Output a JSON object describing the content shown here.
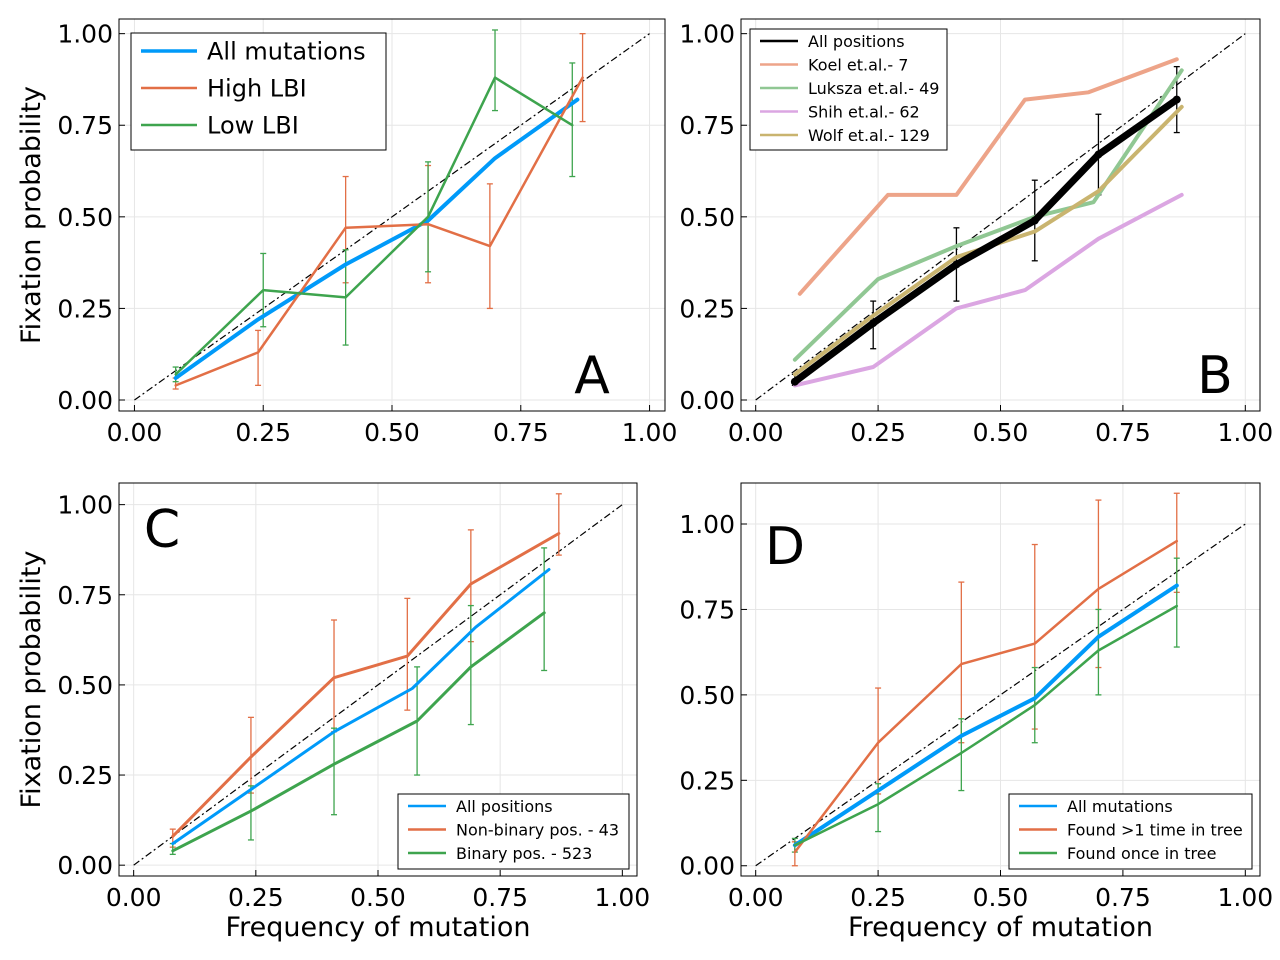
{
  "colors": {
    "blue": "#009af9",
    "orange": "#e26f46",
    "green": "#3ea44e",
    "salmon": "#eda489",
    "lightgreen": "#90c793",
    "purple": "#dba6e2",
    "khaki": "#c9b46f",
    "black": "#000000",
    "grid": "#e6e6e6"
  },
  "chart_data": [
    {
      "id": "A",
      "type": "line",
      "panel_label": "A",
      "xlabel": "",
      "ylabel": "Fixation probability",
      "xlim": [
        -0.03,
        1.03
      ],
      "ylim": [
        -0.03,
        1.04
      ],
      "xticks": [
        "0.00",
        "0.25",
        "0.50",
        "0.75",
        "1.00"
      ],
      "yticks": [
        "0.00",
        "0.25",
        "0.50",
        "0.75",
        "1.00"
      ],
      "grid": true,
      "legend_position": "top-left",
      "reference_line": "diagonal dash-dot",
      "series": [
        {
          "name": "All mutations",
          "color": "#009af9",
          "width": 4,
          "x": [
            0.08,
            0.24,
            0.41,
            0.57,
            0.7,
            0.86
          ],
          "y": [
            0.06,
            0.22,
            0.37,
            0.49,
            0.66,
            0.82
          ]
        },
        {
          "name": "High LBI",
          "color": "#e26f46",
          "width": 2.5,
          "x": [
            0.08,
            0.24,
            0.41,
            0.57,
            0.69,
            0.87
          ],
          "y": [
            0.04,
            0.13,
            0.47,
            0.48,
            0.42,
            0.88
          ],
          "err_low": [
            0.03,
            0.04,
            0.32,
            0.32,
            0.25,
            0.76
          ],
          "err_high": [
            0.06,
            0.19,
            0.61,
            0.64,
            0.59,
            1.0
          ]
        },
        {
          "name": "Low LBI",
          "color": "#3ea44e",
          "width": 2.5,
          "x": [
            0.08,
            0.25,
            0.41,
            0.57,
            0.7,
            0.85
          ],
          "y": [
            0.07,
            0.3,
            0.28,
            0.5,
            0.88,
            0.75
          ],
          "err_low": [
            0.05,
            0.2,
            0.15,
            0.35,
            0.79,
            0.61
          ],
          "err_high": [
            0.09,
            0.4,
            0.41,
            0.65,
            1.01,
            0.92
          ]
        }
      ]
    },
    {
      "id": "B",
      "type": "line",
      "panel_label": "B",
      "xlabel": "",
      "ylabel": "",
      "xlim": [
        -0.03,
        1.03
      ],
      "ylim": [
        -0.03,
        1.04
      ],
      "xticks": [
        "0.00",
        "0.25",
        "0.50",
        "0.75",
        "1.00"
      ],
      "yticks": [
        "0.00",
        "0.25",
        "0.50",
        "0.75",
        "1.00"
      ],
      "grid": true,
      "legend_position": "top-left",
      "reference_line": "diagonal dash-dot",
      "series": [
        {
          "name": "All positions",
          "color": "#000000",
          "width": 7,
          "x": [
            0.08,
            0.24,
            0.41,
            0.57,
            0.7,
            0.86
          ],
          "y": [
            0.05,
            0.21,
            0.37,
            0.49,
            0.67,
            0.82
          ],
          "err_low": [
            0.04,
            0.14,
            0.27,
            0.38,
            0.56,
            0.73
          ],
          "err_high": [
            0.07,
            0.27,
            0.47,
            0.6,
            0.78,
            0.91
          ]
        },
        {
          "name": "Koel et.al.- 7",
          "color": "#eda489",
          "width": 4,
          "x": [
            0.09,
            0.27,
            0.41,
            0.55,
            0.68,
            0.86
          ],
          "y": [
            0.29,
            0.56,
            0.56,
            0.82,
            0.84,
            0.93
          ]
        },
        {
          "name": "Luksza et.al.- 49",
          "color": "#90c793",
          "width": 4,
          "x": [
            0.08,
            0.25,
            0.41,
            0.57,
            0.69,
            0.87
          ],
          "y": [
            0.11,
            0.33,
            0.42,
            0.5,
            0.54,
            0.9
          ]
        },
        {
          "name": "Shih et.al.- 62",
          "color": "#dba6e2",
          "width": 4,
          "x": [
            0.08,
            0.24,
            0.41,
            0.55,
            0.7,
            0.87
          ],
          "y": [
            0.04,
            0.09,
            0.25,
            0.3,
            0.44,
            0.56
          ]
        },
        {
          "name": "Wolf et.al.- 129",
          "color": "#c9b46f",
          "width": 4,
          "x": [
            0.08,
            0.24,
            0.41,
            0.57,
            0.7,
            0.87
          ],
          "y": [
            0.07,
            0.23,
            0.39,
            0.46,
            0.57,
            0.8
          ]
        }
      ]
    },
    {
      "id": "C",
      "type": "line",
      "panel_label": "C",
      "xlabel": "Frequency of mutation",
      "ylabel": "Fixation probability",
      "xlim": [
        -0.03,
        1.03
      ],
      "ylim": [
        -0.03,
        1.06
      ],
      "xticks": [
        "0.00",
        "0.25",
        "0.50",
        "0.75",
        "1.00"
      ],
      "yticks": [
        "0.00",
        "0.25",
        "0.50",
        "0.75",
        "1.00"
      ],
      "grid": true,
      "legend_position": "bottom-right",
      "reference_line": "diagonal dash-dot",
      "series": [
        {
          "name": "All positions",
          "color": "#009af9",
          "width": 3,
          "x": [
            0.08,
            0.24,
            0.41,
            0.57,
            0.7,
            0.85
          ],
          "y": [
            0.06,
            0.21,
            0.37,
            0.49,
            0.66,
            0.82
          ]
        },
        {
          "name": "Non-binary pos. - 43",
          "color": "#e26f46",
          "width": 3,
          "x": [
            0.08,
            0.24,
            0.41,
            0.56,
            0.69,
            0.87
          ],
          "y": [
            0.08,
            0.3,
            0.52,
            0.58,
            0.78,
            0.92
          ],
          "err_low": [
            0.05,
            0.2,
            0.37,
            0.43,
            0.62,
            0.86
          ],
          "err_high": [
            0.1,
            0.41,
            0.68,
            0.74,
            0.93,
            1.03
          ]
        },
        {
          "name": "Binary pos. - 523",
          "color": "#3ea44e",
          "width": 3,
          "x": [
            0.08,
            0.24,
            0.41,
            0.58,
            0.69,
            0.84
          ],
          "y": [
            0.04,
            0.15,
            0.28,
            0.4,
            0.55,
            0.7
          ],
          "err_low": [
            0.03,
            0.07,
            0.14,
            0.25,
            0.39,
            0.54
          ],
          "err_high": [
            0.06,
            0.22,
            0.38,
            0.55,
            0.72,
            0.88
          ]
        }
      ]
    },
    {
      "id": "D",
      "type": "line",
      "panel_label": "D",
      "xlabel": "Frequency of mutation",
      "ylabel": "",
      "xlim": [
        -0.03,
        1.03
      ],
      "ylim": [
        -0.03,
        1.12
      ],
      "xticks": [
        "0.00",
        "0.25",
        "0.50",
        "0.75",
        "1.00"
      ],
      "yticks": [
        "0.00",
        "0.25",
        "0.50",
        "0.75",
        "1.00"
      ],
      "grid": true,
      "legend_position": "bottom-right",
      "reference_line": "diagonal dash-dot",
      "series": [
        {
          "name": "All mutations",
          "color": "#009af9",
          "width": 4,
          "x": [
            0.08,
            0.25,
            0.42,
            0.57,
            0.7,
            0.86
          ],
          "y": [
            0.06,
            0.22,
            0.38,
            0.49,
            0.67,
            0.82
          ]
        },
        {
          "name": "Found >1 time in tree",
          "color": "#e26f46",
          "width": 2.5,
          "x": [
            0.08,
            0.25,
            0.42,
            0.57,
            0.7,
            0.86
          ],
          "y": [
            0.04,
            0.36,
            0.59,
            0.65,
            0.81,
            0.95
          ],
          "err_low": [
            0.0,
            0.21,
            0.36,
            0.4,
            0.58,
            0.8
          ],
          "err_high": [
            0.07,
            0.52,
            0.83,
            0.94,
            1.07,
            1.09
          ]
        },
        {
          "name": "Found once in tree",
          "color": "#3ea44e",
          "width": 2.5,
          "x": [
            0.08,
            0.25,
            0.42,
            0.57,
            0.7,
            0.86
          ],
          "y": [
            0.06,
            0.18,
            0.33,
            0.47,
            0.63,
            0.76
          ],
          "err_low": [
            0.04,
            0.1,
            0.22,
            0.36,
            0.5,
            0.64
          ],
          "err_high": [
            0.08,
            0.24,
            0.43,
            0.58,
            0.75,
            0.9
          ]
        }
      ]
    }
  ]
}
